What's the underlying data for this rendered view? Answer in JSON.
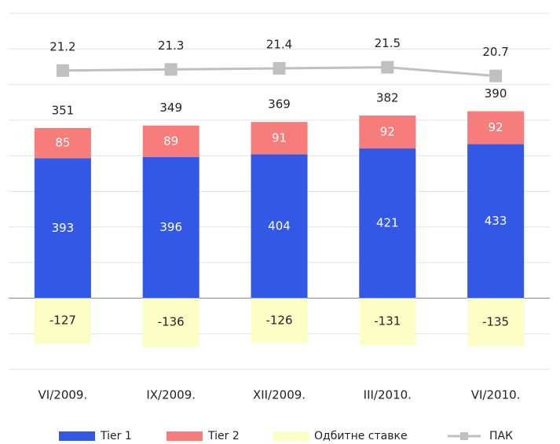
{
  "chart_data": {
    "type": "bar",
    "categories": [
      "VI/2009.",
      "IX/2009.",
      "XII/2009.",
      "III/2010.",
      "VI/2010."
    ],
    "series": [
      {
        "name": "Tier 1",
        "color": "#3358e6",
        "values": [
          393,
          396,
          404,
          421,
          433
        ]
      },
      {
        "name": "Tier 2",
        "color": "#f77c7c",
        "values": [
          85,
          89,
          91,
          92,
          92
        ]
      },
      {
        "name": "Одбитне ставке",
        "color": "#fdfdc6",
        "values": [
          -127,
          -136,
          -126,
          -131,
          -135
        ]
      },
      {
        "name": "ПАК",
        "type": "line",
        "axis": "y2",
        "color": "#c0c0c0",
        "values": [
          21.2,
          21.3,
          21.4,
          21.5,
          20.7
        ]
      }
    ],
    "totals": [
      351,
      349,
      369,
      382,
      390
    ],
    "ylim": [
      -200,
      800
    ],
    "yticks": [
      -200,
      -100,
      0,
      100,
      200,
      300,
      400,
      500,
      600,
      700,
      800
    ],
    "y2lim": [
      -6.5,
      26.5
    ],
    "grid": true,
    "legend": "bottom"
  }
}
